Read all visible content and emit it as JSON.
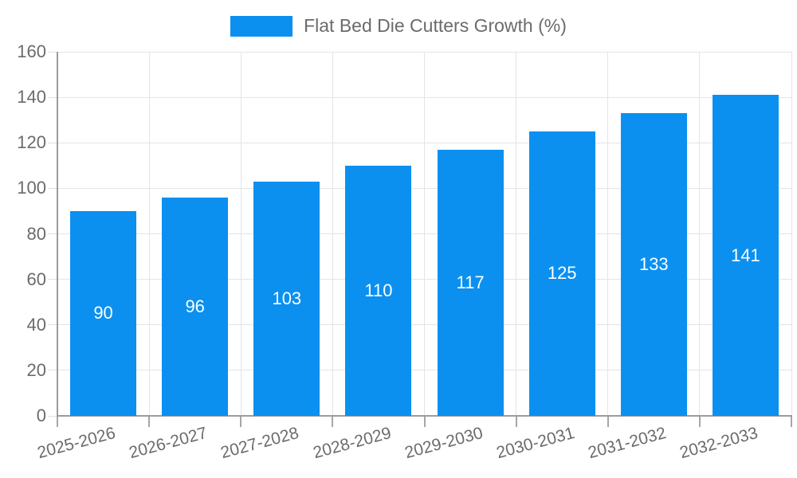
{
  "chart_data": {
    "type": "bar",
    "title": "Flat Bed Die Cutters Growth (%)",
    "categories": [
      "2025-2026",
      "2026-2027",
      "2027-2028",
      "2028-2029",
      "2029-2030",
      "2030-2031",
      "2031-2032",
      "2032-2033"
    ],
    "values": [
      90,
      96,
      103,
      110,
      117,
      125,
      133,
      141
    ],
    "value_labels": [
      "90",
      "96",
      "103",
      "110",
      "117",
      "125",
      "133",
      "141"
    ],
    "xlabel": "",
    "ylabel": "",
    "ylim": [
      0,
      160
    ],
    "yticks": [
      0,
      20,
      40,
      60,
      80,
      100,
      120,
      140,
      160
    ],
    "grid": true,
    "legend_position": "top",
    "colors": {
      "bar": "#0b90f0",
      "grid": "#e4e4e4",
      "axis": "#9b9b9b",
      "tick": "#a6a6a6",
      "text": "#6b6b6b",
      "value_label": "#ffffff",
      "background": "#ffffff"
    }
  }
}
